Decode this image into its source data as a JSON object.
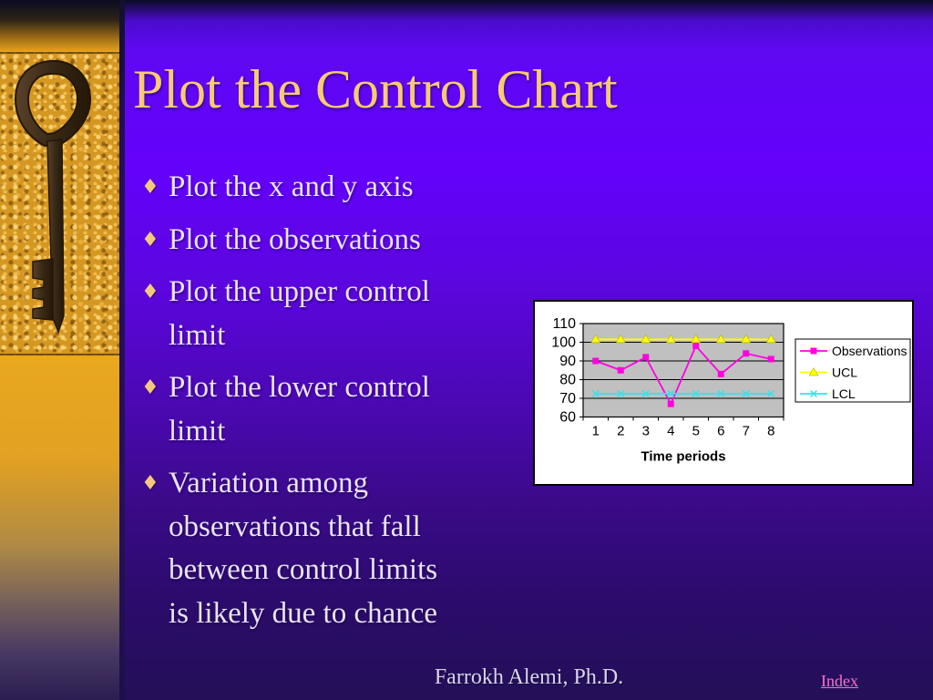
{
  "slide": {
    "title": "Plot the Control Chart",
    "bullet_glyph": "♦",
    "bullets": [
      {
        "text": "Plot the x and y axis"
      },
      {
        "text": "Plot the observations"
      },
      {
        "text": "Plot the upper control\nlimit"
      },
      {
        "text": "Plot the lower control\nlimit"
      },
      {
        "text": "Variation among\nobservations that fall\nbetween control limits\nis likely due to chance"
      }
    ]
  },
  "footer": {
    "author": "Farrokh Alemi, Ph.D.",
    "index_label": "Index"
  },
  "icons": {
    "sidebar_image": "antique-key-photo",
    "bullet_icon": "diamond-bullet"
  },
  "colors": {
    "background_purple": "#6401fb",
    "background_bottom": "#231057",
    "title_gold": "#f8ca74",
    "body_text": "#eae3f7",
    "bullet_gold": "#f3c87e",
    "sidebar_gold": "#e8a41e",
    "index_link_pink": "#ff6fcb",
    "chart_plot_bg": "#c0c0c0",
    "observations_magenta": "#ff00e0",
    "ucl_yellow": "#ffff00",
    "lcl_cyan": "#33e3ee"
  },
  "chart_data": {
    "type": "line",
    "title": "",
    "xlabel": "Time periods",
    "ylabel": "",
    "categories": [
      "1",
      "2",
      "3",
      "4",
      "5",
      "6",
      "7",
      "8"
    ],
    "series": [
      {
        "name": "Observations",
        "color": "#ff00e0",
        "marker": "square",
        "values": [
          90,
          85,
          92,
          67,
          98,
          83,
          94,
          91
        ]
      },
      {
        "name": "UCL",
        "color": "#ffff00",
        "marker": "triangle",
        "values": [
          101.5,
          101.5,
          101.5,
          101.5,
          101.5,
          101.5,
          101.5,
          101.5
        ]
      },
      {
        "name": "LCL",
        "color": "#33e3ee",
        "marker": "x",
        "values": [
          72.5,
          72.5,
          72.5,
          72.5,
          72.5,
          72.5,
          72.5,
          72.5
        ]
      }
    ],
    "ylim": [
      60,
      110
    ],
    "ytick_step": 10,
    "grid": true,
    "plot_bg": "#c0c0c0",
    "legend_position": "right"
  }
}
